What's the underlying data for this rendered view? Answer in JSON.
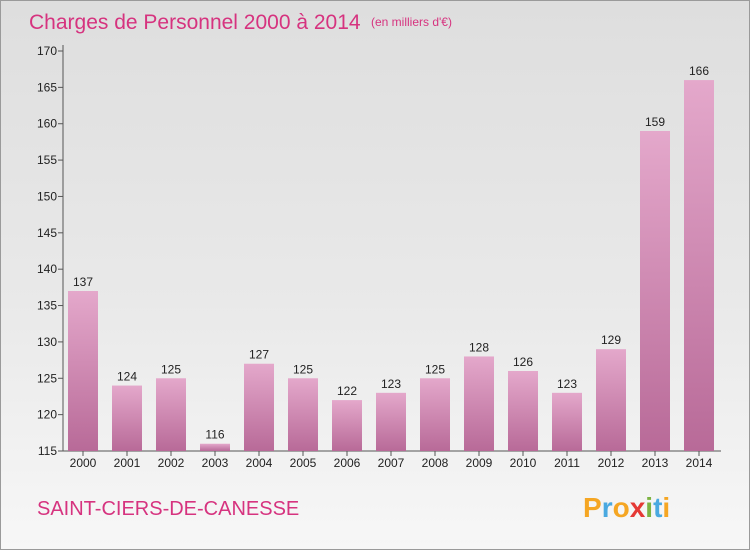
{
  "chart_data": {
    "type": "bar",
    "title": "Charges de Personnel 2000 à 2014",
    "subtitle": "(en milliers d'€)",
    "categories": [
      "2000",
      "2001",
      "2002",
      "2003",
      "2004",
      "2005",
      "2006",
      "2007",
      "2008",
      "2009",
      "2010",
      "2011",
      "2012",
      "2013",
      "2014"
    ],
    "values": [
      137,
      124,
      125,
      116,
      127,
      125,
      122,
      123,
      125,
      128,
      126,
      123,
      129,
      159,
      166
    ],
    "ylim": [
      115,
      170
    ],
    "yticks": [
      115,
      120,
      125,
      130,
      135,
      140,
      145,
      150,
      155,
      160,
      165,
      170
    ],
    "xlabel": "",
    "ylabel": "",
    "grid": false,
    "bar_color_top": "#e4a8cb",
    "bar_color_bottom": "#b86a98"
  },
  "commune_name": "SAINT-CIERS-DE-CANESSE",
  "logo": {
    "text": "Proxiti",
    "letters": [
      "P",
      "r",
      "o",
      "x",
      "i",
      "t",
      "i"
    ],
    "colors": [
      "#f5a623",
      "#4aa9e0",
      "#f5a623",
      "#e53935",
      "#7cb342",
      "#4aa9e0",
      "#f5a623"
    ]
  }
}
